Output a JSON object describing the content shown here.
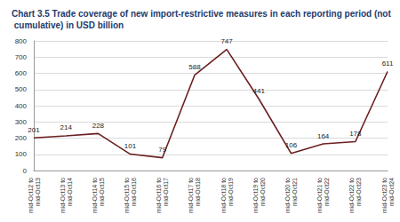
{
  "chart_data": {
    "type": "line",
    "title": "Chart 3.5 Trade coverage of new import-restrictive measures in each reporting period (not cumulative) in USD billion",
    "categories": [
      "mid-Oct12 to mid-Oct13",
      "mid-Oct13 to mid-Oct14",
      "mid-Oct14 to mid-Oct15",
      "mid-Oct15 to mid-Oct16",
      "mid-Oct16 to mid-Oct17",
      "mid-Oct17 to mid-Oct18",
      "mid-Oct18 to mid-Oct19",
      "mid-Oct19 to mid-Oct20",
      "mid-Oct20 to mid-Oct21",
      "mid-Oct21 to mid-Oct22",
      "mid-Oct22 to mid-Oct23",
      "mid-Oct23 to mid-Oct24"
    ],
    "values": [
      201,
      214,
      228,
      101,
      79,
      588,
      747,
      441,
      106,
      164,
      178,
      611
    ],
    "color": "#6b1f1f",
    "ylim": [
      0,
      800
    ],
    "yticks": [
      0,
      100,
      200,
      300,
      400,
      500,
      600,
      700,
      800
    ],
    "grid": true,
    "data_labels": true
  }
}
